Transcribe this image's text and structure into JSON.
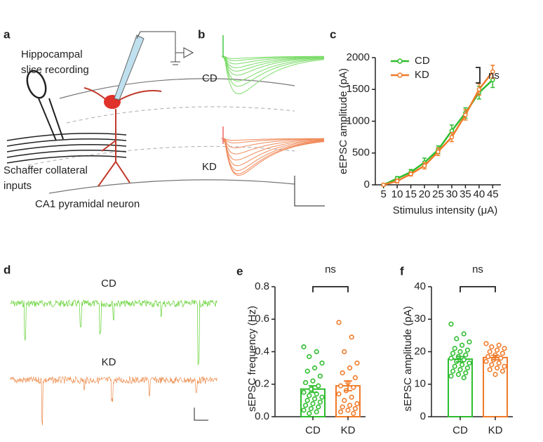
{
  "panel_labels": [
    "a",
    "b",
    "c",
    "d",
    "e",
    "f"
  ],
  "diagram": {
    "labels": [
      "Hippocampal",
      "slice recording",
      "Schaffer collateral",
      "inputs",
      "CA1 pyramidal neuron"
    ]
  },
  "traces_b": {
    "labels": [
      "CD",
      "KD"
    ]
  },
  "traces_d": {
    "labels": [
      "CD",
      "KD"
    ]
  },
  "chart_data": [
    {
      "type": "line",
      "x_label": "Stimulus intensity (μA)",
      "y_label": "eEPSC amplitude (pA)",
      "x": [
        5,
        10,
        15,
        20,
        25,
        30,
        35,
        40,
        45
      ],
      "xlim": [
        2,
        48
      ],
      "xticks": [
        5,
        10,
        15,
        20,
        25,
        30,
        35,
        40,
        45
      ],
      "ylim": [
        0,
        2000
      ],
      "yticks": [
        0,
        500,
        1000,
        1500,
        2000
      ],
      "legend": "upper left",
      "annotation": "ns",
      "series": [
        {
          "name": "CD",
          "color": "#2dbd2d",
          "values": [
            0,
            100,
            200,
            350,
            550,
            850,
            1130,
            1450,
            1650
          ],
          "errors": [
            20,
            30,
            40,
            70,
            60,
            90,
            80,
            100,
            120
          ]
        },
        {
          "name": "KD",
          "color": "#f07a28",
          "values": [
            0,
            60,
            170,
            300,
            520,
            750,
            1100,
            1500,
            1780
          ],
          "errors": [
            20,
            30,
            30,
            50,
            60,
            70,
            80,
            90,
            100
          ]
        }
      ]
    },
    {
      "type": "bar",
      "y_label": "sEPSC frequency (Hz)",
      "categories": [
        "CD",
        "KD"
      ],
      "values": [
        0.17,
        0.19
      ],
      "errors": [
        0.02,
        0.03
      ],
      "colors": [
        "#2dbd2d",
        "#f07a28"
      ],
      "ylim": [
        0,
        0.8
      ],
      "yticks": [
        {
          "value": 0,
          "label": "0.0"
        },
        0.2,
        0.4,
        0.6,
        0.8
      ],
      "annotation": "ns",
      "points": [
        [
          0.43,
          0.4,
          0.37,
          0.33,
          0.3,
          0.28,
          0.25,
          0.22,
          0.21,
          0.19,
          0.17,
          0.15,
          0.14,
          0.13,
          0.12,
          0.11,
          0.1,
          0.09,
          0.08,
          0.07,
          0.06,
          0.05,
          0.04,
          0.03,
          0.02
        ],
        [
          0.58,
          0.49,
          0.4,
          0.33,
          0.3,
          0.27,
          0.24,
          0.21,
          0.19,
          0.18,
          0.16,
          0.14,
          0.12,
          0.1,
          0.08,
          0.07,
          0.06,
          0.05,
          0.04,
          0.03,
          0.02
        ]
      ]
    },
    {
      "type": "bar",
      "y_label": "sEPSC amplitude (pA)",
      "categories": [
        "CD",
        "KD"
      ],
      "values": [
        17.7,
        18.2
      ],
      "errors": [
        0.8,
        0.7
      ],
      "colors": [
        "#2dbd2d",
        "#f07a28"
      ],
      "ylim": [
        0,
        40
      ],
      "yticks": [
        0,
        10,
        20,
        30,
        40
      ],
      "annotation": "ns",
      "points": [
        [
          28.5,
          25.5,
          24,
          23,
          22,
          21,
          20.5,
          20,
          19.5,
          19,
          18.5,
          18,
          17.5,
          17,
          16.5,
          16,
          15.5,
          15,
          14.5,
          14,
          13.5,
          13,
          12.5,
          12
        ],
        [
          22.5,
          22,
          21.5,
          21,
          20.5,
          20,
          19.5,
          19,
          18.5,
          18,
          17.5,
          17,
          16.5,
          16,
          15.5,
          15,
          14.5,
          14,
          13
        ]
      ]
    }
  ]
}
